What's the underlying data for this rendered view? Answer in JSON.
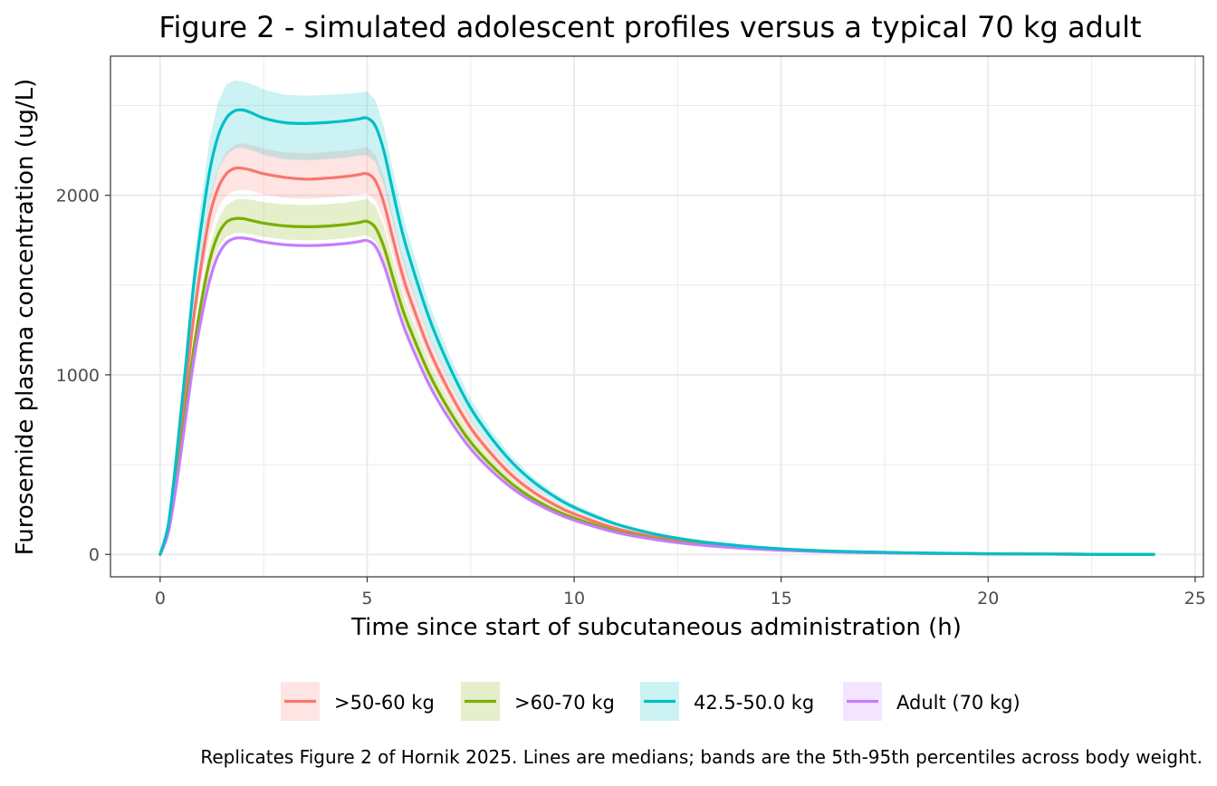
{
  "chart_data": {
    "type": "line",
    "title": "Figure 2 - simulated adolescent profiles versus a typical 70 kg adult",
    "xlabel": "Time since start of subcutaneous administration (h)",
    "ylabel": "Furosemide plasma concentration (ug/L)",
    "caption": "Replicates Figure 2 of Hornik 2025. Lines are medians; bands are the 5th-95th percentiles across body weight.",
    "xlim": [
      -1.2,
      25.2
    ],
    "ylim": [
      -125,
      2775
    ],
    "x_ticks": [
      0,
      5,
      10,
      15,
      20,
      25
    ],
    "y_ticks": [
      0,
      1000,
      2000
    ],
    "grid": true,
    "legend_position": "bottom",
    "x": [
      0,
      0.2,
      0.4,
      0.6,
      0.8,
      1.0,
      1.2,
      1.4,
      1.6,
      1.8,
      2.0,
      2.2,
      2.5,
      3.0,
      3.5,
      4.0,
      4.5,
      4.8,
      5.0,
      5.2,
      5.4,
      5.6,
      5.8,
      6.0,
      6.5,
      7.0,
      7.5,
      8.0,
      8.5,
      9.0,
      9.5,
      10,
      11,
      12,
      13,
      14,
      15,
      16,
      17,
      18,
      19,
      20,
      21,
      22,
      23,
      24
    ],
    "series": [
      {
        "name": ">50-60 kg",
        "color": "#F8766D",
        "values": [
          0,
          150,
          490,
          890,
          1300,
          1620,
          1890,
          2040,
          2120,
          2150,
          2150,
          2140,
          2120,
          2100,
          2090,
          2095,
          2105,
          2115,
          2120,
          2080,
          1960,
          1780,
          1600,
          1450,
          1140,
          900,
          705,
          560,
          440,
          350,
          280,
          225,
          145,
          95,
          62,
          40,
          26,
          17,
          12,
          8,
          5,
          3,
          2,
          1,
          0,
          0
        ],
        "lower": [
          0,
          140,
          460,
          840,
          1230,
          1530,
          1780,
          1930,
          2000,
          2025,
          2030,
          2025,
          2005,
          1985,
          1980,
          1985,
          1995,
          2005,
          2010,
          1970,
          1860,
          1690,
          1520,
          1380,
          1085,
          855,
          670,
          530,
          418,
          332,
          266,
          214,
          138,
          90,
          59,
          38,
          25,
          16,
          11,
          7,
          5,
          3,
          2,
          1,
          0,
          0
        ],
        "upper": [
          0,
          160,
          520,
          940,
          1370,
          1710,
          1990,
          2150,
          2240,
          2280,
          2290,
          2280,
          2260,
          2240,
          2235,
          2240,
          2250,
          2260,
          2270,
          2225,
          2100,
          1905,
          1710,
          1550,
          1215,
          960,
          752,
          597,
          470,
          374,
          299,
          240,
          155,
          101,
          66,
          43,
          28,
          18,
          13,
          8,
          5,
          3,
          2,
          1,
          0,
          0
        ]
      },
      {
        "name": ">60-70 kg",
        "color": "#7CAE00",
        "values": [
          0,
          135,
          430,
          780,
          1130,
          1410,
          1640,
          1780,
          1850,
          1870,
          1870,
          1860,
          1845,
          1830,
          1825,
          1828,
          1838,
          1848,
          1855,
          1820,
          1715,
          1560,
          1405,
          1275,
          1005,
          795,
          625,
          497,
          392,
          312,
          250,
          202,
          131,
          86,
          56,
          37,
          24,
          16,
          11,
          7,
          5,
          3,
          2,
          1,
          0,
          0
        ],
        "lower": [
          0,
          128,
          410,
          745,
          1080,
          1350,
          1570,
          1705,
          1770,
          1790,
          1790,
          1782,
          1768,
          1754,
          1749,
          1752,
          1761,
          1771,
          1778,
          1744,
          1644,
          1496,
          1347,
          1222,
          963,
          762,
          599,
          476,
          376,
          299,
          240,
          194,
          126,
          83,
          54,
          36,
          23,
          15,
          10,
          7,
          5,
          3,
          2,
          1,
          0,
          0
        ],
        "upper": [
          0,
          142,
          452,
          820,
          1190,
          1480,
          1720,
          1870,
          1945,
          1975,
          1980,
          1975,
          1962,
          1950,
          1946,
          1950,
          1960,
          1970,
          1980,
          1942,
          1830,
          1664,
          1499,
          1360,
          1072,
          848,
          667,
          530,
          418,
          333,
          267,
          215,
          140,
          92,
          60,
          39,
          26,
          17,
          12,
          8,
          5,
          3,
          2,
          1,
          0,
          0
        ]
      },
      {
        "name": "42.5-50.0 kg",
        "color": "#00BFC4",
        "values": [
          0,
          170,
          560,
          1010,
          1480,
          1840,
          2140,
          2330,
          2430,
          2470,
          2475,
          2460,
          2430,
          2405,
          2400,
          2405,
          2415,
          2425,
          2430,
          2385,
          2250,
          2045,
          1840,
          1670,
          1315,
          1040,
          815,
          648,
          512,
          407,
          326,
          262,
          170,
          111,
          73,
          48,
          31,
          20,
          14,
          9,
          6,
          4,
          2,
          1,
          0,
          0
        ],
        "lower": [
          0,
          155,
          515,
          930,
          1360,
          1690,
          1965,
          2140,
          2225,
          2260,
          2265,
          2252,
          2225,
          2200,
          2195,
          2200,
          2210,
          2220,
          2225,
          2185,
          2060,
          1872,
          1685,
          1530,
          1205,
          953,
          747,
          594,
          469,
          373,
          299,
          240,
          156,
          102,
          67,
          44,
          28,
          18,
          13,
          8,
          6,
          4,
          2,
          1,
          0,
          0
        ],
        "upper": [
          0,
          185,
          605,
          1090,
          1600,
          1990,
          2315,
          2520,
          2620,
          2640,
          2635,
          2620,
          2590,
          2560,
          2555,
          2558,
          2565,
          2572,
          2578,
          2530,
          2385,
          2168,
          1950,
          1770,
          1394,
          1102,
          864,
          687,
          543,
          431,
          346,
          278,
          180,
          118,
          77,
          51,
          33,
          21,
          15,
          10,
          6,
          4,
          2,
          1,
          0,
          0
        ]
      },
      {
        "name": "Adult (70 kg)",
        "color": "#C77CFF",
        "values": [
          0,
          125,
          400,
          730,
          1060,
          1320,
          1530,
          1665,
          1735,
          1760,
          1762,
          1755,
          1740,
          1725,
          1720,
          1723,
          1732,
          1742,
          1748,
          1715,
          1615,
          1470,
          1325,
          1200,
          945,
          748,
          588,
          467,
          369,
          294,
          236,
          190,
          123,
          81,
          53,
          35,
          23,
          15,
          10,
          7,
          4,
          3,
          2,
          1,
          0,
          0
        ]
      }
    ]
  }
}
